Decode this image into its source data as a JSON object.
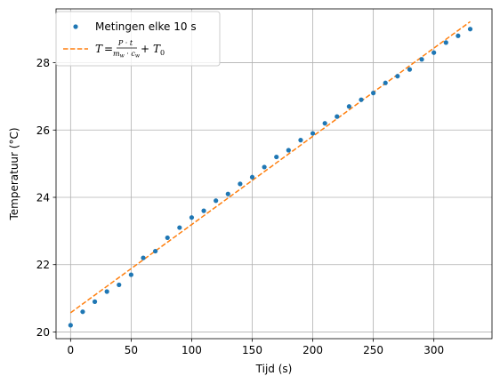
{
  "chart_data": {
    "type": "scatter",
    "xlabel": "Tijd (s)",
    "ylabel": "Temperatuur (°C)",
    "xlim": [
      -12,
      348
    ],
    "ylim": [
      19.8,
      29.6
    ],
    "xticks": [
      0,
      50,
      100,
      150,
      200,
      250,
      300
    ],
    "yticks": [
      20,
      22,
      24,
      26,
      28
    ],
    "grid": true,
    "legend_position": "top-left",
    "series": [
      {
        "name": "Metingen elke 10 s",
        "kind": "markers",
        "color": "#1f77b4",
        "x": [
          0,
          10,
          20,
          30,
          40,
          50,
          60,
          70,
          80,
          90,
          100,
          110,
          120,
          130,
          140,
          150,
          160,
          170,
          180,
          190,
          200,
          210,
          220,
          230,
          240,
          250,
          260,
          270,
          280,
          290,
          300,
          310,
          320,
          330
        ],
        "y": [
          20.2,
          20.6,
          20.9,
          21.2,
          21.4,
          21.7,
          22.2,
          22.4,
          22.8,
          23.1,
          23.4,
          23.6,
          23.9,
          24.1,
          24.4,
          24.6,
          24.9,
          25.2,
          25.4,
          25.7,
          25.9,
          26.2,
          26.4,
          26.7,
          26.9,
          27.1,
          27.4,
          27.6,
          27.8,
          28.1,
          28.3,
          28.6,
          28.8,
          29.0
        ]
      },
      {
        "name": "T = P·t / (m_w·c_w) + T_0",
        "kind": "dashed-line",
        "color": "#ff7f0e",
        "x": [
          0,
          330
        ],
        "y": [
          20.57,
          29.22
        ]
      }
    ]
  }
}
